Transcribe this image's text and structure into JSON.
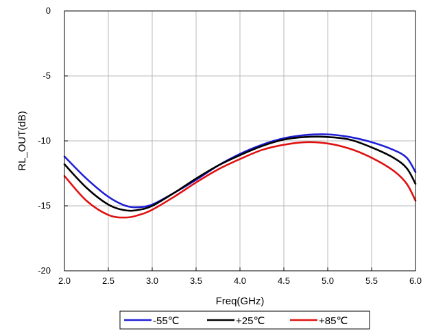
{
  "chart_data": {
    "type": "line",
    "xlabel": "Freq(GHz)",
    "ylabel": "RL_OUT(dB)",
    "xlim": [
      2.0,
      6.0
    ],
    "ylim": [
      -20,
      0
    ],
    "x_ticks": [
      2.0,
      2.5,
      3.0,
      3.5,
      4.0,
      4.5,
      5.0,
      5.5,
      6.0
    ],
    "x_tick_labels": [
      "2.0",
      "2.5",
      "3.0",
      "3.5",
      "4.0",
      "4.5",
      "5.0",
      "5.5",
      "6.0"
    ],
    "y_ticks": [
      0,
      -5,
      -10,
      -15,
      -20
    ],
    "y_tick_labels": [
      "0",
      "-5",
      "-10",
      "-15",
      "-20"
    ],
    "grid": true,
    "legend_position": "bottom",
    "x": [
      2.0,
      2.25,
      2.5,
      2.7,
      2.85,
      3.0,
      3.25,
      3.5,
      3.75,
      4.0,
      4.25,
      4.5,
      4.75,
      5.0,
      5.25,
      5.5,
      5.75,
      5.9,
      6.0
    ],
    "series": [
      {
        "name": "-55℃",
        "color": "#1f1fd6",
        "values": [
          -11.2,
          -12.9,
          -14.3,
          -15.0,
          -15.1,
          -14.9,
          -14.0,
          -13.0,
          -11.9,
          -11.0,
          -10.3,
          -9.8,
          -9.55,
          -9.5,
          -9.7,
          -10.1,
          -10.7,
          -11.3,
          -12.4
        ]
      },
      {
        "name": "+25℃",
        "color": "#000000",
        "values": [
          -11.8,
          -13.6,
          -14.9,
          -15.35,
          -15.3,
          -15.0,
          -14.0,
          -12.9,
          -11.9,
          -11.1,
          -10.4,
          -9.9,
          -9.7,
          -9.7,
          -9.9,
          -10.5,
          -11.3,
          -12.1,
          -13.3
        ]
      },
      {
        "name": "+85℃",
        "color": "#e01010",
        "values": [
          -12.7,
          -14.6,
          -15.7,
          -15.9,
          -15.7,
          -15.3,
          -14.3,
          -13.2,
          -12.2,
          -11.4,
          -10.7,
          -10.3,
          -10.1,
          -10.2,
          -10.6,
          -11.3,
          -12.3,
          -13.3,
          -14.6
        ]
      }
    ]
  }
}
